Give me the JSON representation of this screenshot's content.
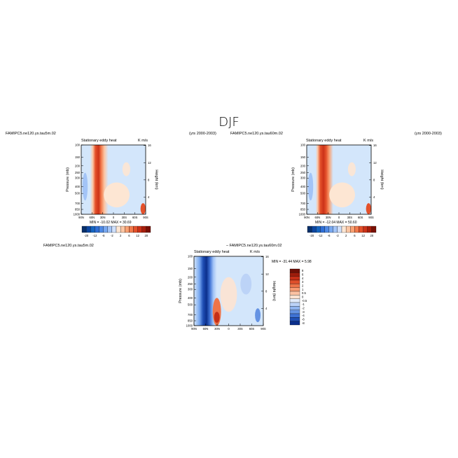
{
  "title": "DJF",
  "panels": [
    {
      "id": "p1",
      "case_left": "FAMIPC5.ne120.ys.tau5m.02",
      "years": "(yrs 2000-2003)",
      "center_title": "Stationary eddy heat",
      "units": "K m/s",
      "ylabel": "Pressure (mb)",
      "ylabel_right": "Height (km)",
      "minmax": "MIN = -10.02   MAX =  30.69",
      "x_ticks": [
        "90N",
        "60N",
        "30N",
        "0",
        "30S",
        "60S",
        "90S"
      ],
      "y_ticks": [
        "100",
        "150",
        "200",
        "250",
        "300",
        "400",
        "500",
        "700",
        "850",
        "1000"
      ],
      "y_ticks_right": [
        "16",
        "12",
        "8",
        "4"
      ],
      "colorbar_labels": [
        "-20",
        "-12",
        "-6",
        "-2",
        "2",
        "6",
        "12",
        "20"
      ]
    },
    {
      "id": "p2",
      "case_left": "FAMIPC5.ne120.ys.tau60m.02",
      "years": "(yrs 2000-2003)",
      "center_title": "Stationary eddy heat",
      "units": "K m/s",
      "ylabel": "Pressure (mb)",
      "ylabel_right": "Height (km)",
      "minmax": "MIN = -12.04   MAX =  50.60",
      "x_ticks": [
        "90N",
        "60N",
        "30N",
        "0",
        "30S",
        "60S",
        "90S"
      ],
      "y_ticks": [
        "100",
        "150",
        "200",
        "250",
        "300",
        "400",
        "500",
        "700",
        "850",
        "1000"
      ],
      "y_ticks_right": [
        "16",
        "12",
        "8",
        "4"
      ],
      "colorbar_labels": [
        "-20",
        "-12",
        "-6",
        "-2",
        "2",
        "6",
        "12",
        "20"
      ]
    },
    {
      "id": "p3",
      "case_left": "FAMIPC5.ne120.ys.tau5m.02",
      "diff_label": "– FAMIPC5.ne120.ys.tau60m.02",
      "center_title": "Stationary eddy heat",
      "units": "K m/s",
      "ylabel": "Pressure (mb)",
      "ylabel_right": "Height (km)",
      "minmax": "MIN = -31.44   MAX =   5.98",
      "x_ticks": [
        "90N",
        "60N",
        "30N",
        "0",
        "30S",
        "60S",
        "90S"
      ],
      "y_ticks": [
        "100",
        "150",
        "200",
        "250",
        "300",
        "400",
        "500",
        "700",
        "850",
        "1000"
      ],
      "y_ticks_right": [
        "16",
        "12",
        "8",
        "4"
      ],
      "colorbar_labels": [
        "8",
        "6",
        "4",
        "3",
        "2",
        "1",
        "0.5",
        "0",
        "-0.5",
        "-1",
        "-2",
        "-3",
        "-4",
        "-6",
        "-8"
      ]
    }
  ],
  "palette": {
    "blue_to_red": [
      "#08306b",
      "#0d47a1",
      "#1565c0",
      "#2f6fd6",
      "#4f8ae6",
      "#78a8f0",
      "#a3c4f7",
      "#cfe0fb",
      "#fde6d3",
      "#fcc6a4",
      "#f9a173",
      "#f27a4c",
      "#e4512b",
      "#cc3218",
      "#a81e0c",
      "#7a1005"
    ],
    "diff_bar": [
      "#6e0f06",
      "#9e1c0b",
      "#c52f17",
      "#de4f2a",
      "#ee7449",
      "#f69a72",
      "#fbc1a2",
      "#fde3d2",
      "#e2ecfb",
      "#bcd3f7",
      "#8fb4ef",
      "#6593e3",
      "#3f72d4",
      "#2050b6",
      "#0b2f8c"
    ],
    "background_light_blue": "#d3e6fb",
    "background_light_orange": "#fde6d3"
  },
  "chart_data": [
    {
      "type": "heatmap",
      "title": "Stationary eddy heat",
      "units": "K m/s",
      "xlabel": "",
      "ylabel": "Pressure (mb)",
      "x_categories": [
        "90N",
        "60N",
        "30N",
        "0",
        "30S",
        "60S",
        "90S"
      ],
      "y_levels_mb": [
        100,
        150,
        200,
        250,
        300,
        400,
        500,
        700,
        850,
        1000
      ],
      "min": -10.02,
      "max": 30.69,
      "features": "strong positive maximum near 60N-50N extending through the depth of the troposphere; weak negative values near 80N at 500 mb and at 60S near surface"
    },
    {
      "type": "heatmap",
      "title": "Stationary eddy heat",
      "units": "K m/s",
      "xlabel": "",
      "ylabel": "Pressure (mb)",
      "x_categories": [
        "90N",
        "60N",
        "30N",
        "0",
        "30S",
        "60S",
        "90S"
      ],
      "y_levels_mb": [
        100,
        150,
        200,
        250,
        300,
        400,
        500,
        700,
        850,
        1000
      ],
      "min": -12.04,
      "max": 50.6,
      "features": "strong positive maximum near 60N-50N, stronger than panel 1"
    },
    {
      "type": "heatmap",
      "title": "Stationary eddy heat",
      "units": "K m/s",
      "xlabel": "",
      "ylabel": "Pressure (mb)",
      "x_categories": [
        "90N",
        "60N",
        "30N",
        "0",
        "30S",
        "60S",
        "90S"
      ],
      "y_levels_mb": [
        100,
        150,
        200,
        250,
        300,
        400,
        500,
        700,
        850,
        1000
      ],
      "min": -31.44,
      "max": 5.98,
      "features": "strong negative difference near 70N-60N throughout the column; positive difference near 50N-40N below 500 mb"
    }
  ]
}
